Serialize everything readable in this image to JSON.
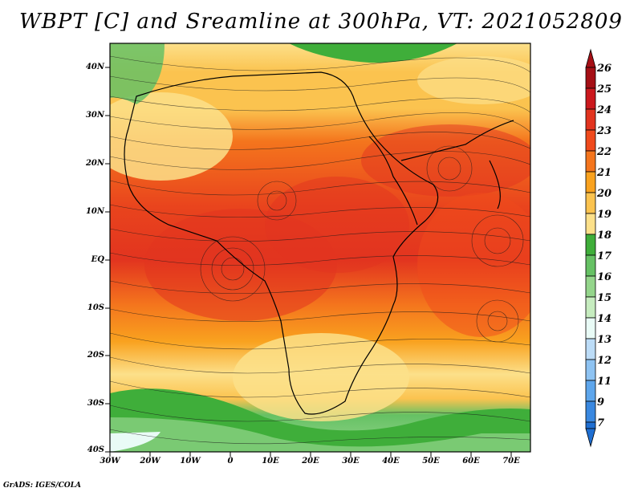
{
  "title": "WBPT [C] and Sreamline at 300hPa, VT: 2021052809",
  "footer": "GrADS: IGES/COLA",
  "map": {
    "lat_labels": [
      "40N",
      "30N",
      "20N",
      "10N",
      "EQ",
      "10S",
      "20S",
      "30S",
      "40S"
    ],
    "lon_labels": [
      "30W",
      "20W",
      "10W",
      "0",
      "10E",
      "20E",
      "30E",
      "40E",
      "50E",
      "60E",
      "70E"
    ],
    "lon_range": [
      -30,
      75
    ],
    "lat_range": [
      -40,
      45
    ]
  },
  "colorbar": {
    "labels": [
      "26",
      "25",
      "24",
      "23",
      "22",
      "21",
      "20",
      "19",
      "18",
      "17",
      "16",
      "15",
      "14",
      "13",
      "12",
      "11",
      "9",
      "7"
    ],
    "colors": [
      "#a50f15",
      "#cb181d",
      "#e2341f",
      "#f04a1c",
      "#f4751d",
      "#f9a21f",
      "#fbc34f",
      "#fce08a",
      "#3fae3a",
      "#66c164",
      "#94d58b",
      "#c6ecbf",
      "#e9fbf6",
      "#bcdcf7",
      "#8ec3f2",
      "#5ea6ec",
      "#3a88e0",
      "#1f6fd2"
    ]
  }
}
